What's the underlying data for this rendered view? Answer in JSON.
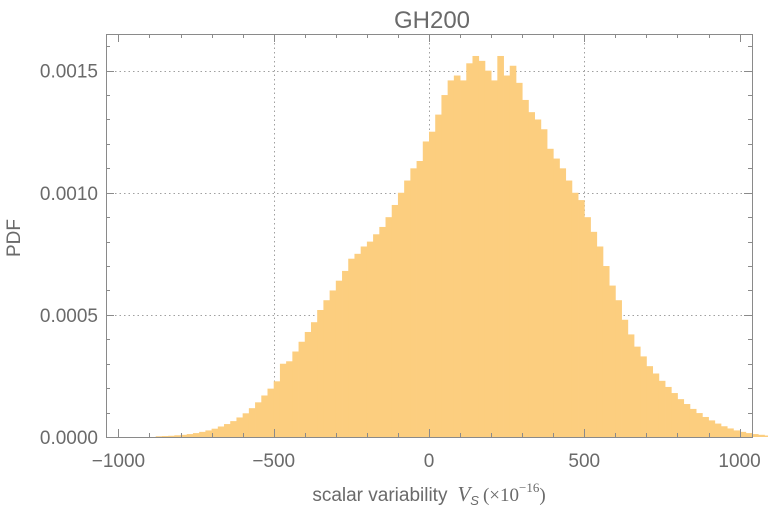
{
  "chart_data": {
    "type": "bar",
    "title": "GH200",
    "xlabel": {
      "text": "scalar variability",
      "symbol": "V",
      "symbol_sub": "S",
      "unit_prefix": "(×10",
      "unit_exp": "−16",
      "unit_suffix": ")"
    },
    "ylabel": "PDF",
    "xlim": [
      -1040,
      1040
    ],
    "ylim": [
      0,
      0.00165
    ],
    "grid": true,
    "x_ticks": [
      {
        "value": -1000,
        "label": "−1000"
      },
      {
        "value": -500,
        "label": "−500"
      },
      {
        "value": 0,
        "label": "0"
      },
      {
        "value": 500,
        "label": "500"
      },
      {
        "value": 1000,
        "label": "1000"
      }
    ],
    "y_ticks": [
      {
        "value": 0,
        "label": "0.0000"
      },
      {
        "value": 0.0005,
        "label": "0.0005"
      },
      {
        "value": 0.001,
        "label": "0.0010"
      },
      {
        "value": 0.0015,
        "label": "0.0015"
      }
    ],
    "bar_color": "#fcce7f",
    "bin_width": 20,
    "bin_start": -880,
    "values": [
      3e-06,
      4e-06,
      5e-06,
      7e-06,
      9e-06,
      1.2e-05,
      1.6e-05,
      2.1e-05,
      2.7e-05,
      3.4e-05,
      4.3e-05,
      5.3e-05,
      6.5e-05,
      8e-05,
      9.7e-05,
      0.000118,
      0.000142,
      0.00017,
      0.000198,
      0.000228,
      0.0003,
      0.00031,
      0.00035,
      0.00039,
      0.00043,
      0.00047,
      0.00052,
      0.00056,
      0.0006,
      0.00064,
      0.00068,
      0.00073,
      0.00075,
      0.00078,
      0.0008,
      0.00083,
      0.00086,
      0.0009,
      0.00095,
      0.001,
      0.00105,
      0.0011,
      0.00113,
      0.00121,
      0.00125,
      0.00132,
      0.0014,
      0.00146,
      0.00148,
      0.00146,
      0.00153,
      0.00156,
      0.00154,
      0.0015,
      0.00146,
      0.00156,
      0.00148,
      0.00152,
      0.00145,
      0.00138,
      0.00133,
      0.0013,
      0.00126,
      0.00118,
      0.00114,
      0.0011,
      0.00105,
      0.001,
      0.00097,
      0.0009,
      0.00084,
      0.00078,
      0.0007,
      0.00062,
      0.00056,
      0.00048,
      0.00042,
      0.00037,
      0.00033,
      0.00029,
      0.00026,
      0.00023,
      0.000205,
      0.00018,
      0.000155,
      0.000135,
      0.000115,
      9.8e-05,
      8.2e-05,
      6.8e-05,
      5.5e-05,
      4.4e-05,
      3.5e-05,
      2.7e-05,
      2.1e-05,
      1.6e-05,
      1.2e-05,
      9e-06,
      6e-06,
      4e-06,
      3e-06,
      2e-06
    ]
  }
}
